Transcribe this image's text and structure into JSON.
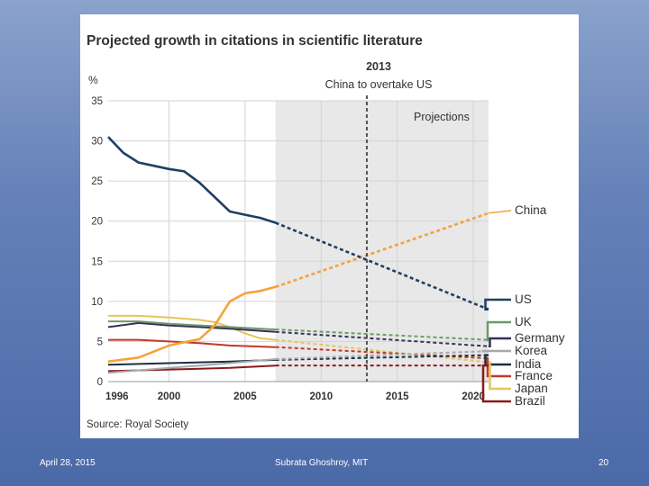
{
  "footer": {
    "date": "April 28, 2015",
    "author": "Subrata Ghoshroy, MIT",
    "page": "20"
  },
  "chart_data": {
    "type": "line",
    "title": "Projected growth in citations in scientific literature",
    "ylabel": "%",
    "xlabel": "",
    "xlim": [
      1996,
      2021
    ],
    "ylim": [
      0,
      35
    ],
    "x_ticks": [
      1996,
      2000,
      2005,
      2010,
      2015,
      2020
    ],
    "y_ticks": [
      0,
      5,
      10,
      15,
      20,
      25,
      30,
      35
    ],
    "x_tick_labels": [
      "1996",
      "2000",
      "2005",
      "2010",
      "2015",
      "2020"
    ],
    "y_tick_labels": [
      "0",
      "5",
      "10",
      "15",
      "20",
      "25",
      "30",
      "35"
    ],
    "projection_start": 2007,
    "projection_label": "Projections",
    "annotation": {
      "year": 2013,
      "title": "2013",
      "text": "China to overtake US"
    },
    "source": "Source: Royal Society",
    "colors": {
      "projection_band": "#e8e8e8",
      "grid": "#d4d4d4",
      "text": "#333333"
    },
    "series": [
      {
        "name": "China",
        "color": "#f5a23a",
        "x": [
          1996,
          1998,
          2000,
          2002,
          2003,
          2004,
          2005,
          2006,
          2007
        ],
        "values": [
          2.5,
          3.0,
          4.5,
          5.3,
          7.0,
          10.0,
          11.0,
          11.3,
          11.8
        ],
        "projection": [
          2021,
          21.0
        ]
      },
      {
        "name": "US",
        "color": "#1f3f63",
        "x": [
          1996,
          1997,
          1998,
          1999,
          2000,
          2001,
          2002,
          2003,
          2004,
          2005,
          2006,
          2007
        ],
        "values": [
          30.5,
          28.5,
          27.3,
          26.9,
          26.5,
          26.2,
          24.8,
          23.0,
          21.2,
          20.8,
          20.4,
          19.8
        ],
        "projection": [
          2021,
          9.0
        ]
      },
      {
        "name": "UK",
        "color": "#6a9a6a",
        "x": [
          1996,
          1998,
          2000,
          2002,
          2004,
          2007
        ],
        "values": [
          7.5,
          7.5,
          7.2,
          7.0,
          6.8,
          6.5
        ],
        "projection": [
          2021,
          5.2
        ]
      },
      {
        "name": "Germany",
        "color": "#3a2f55",
        "x": [
          1996,
          1998,
          2000,
          2002,
          2004,
          2007
        ],
        "values": [
          6.8,
          7.3,
          7.0,
          6.8,
          6.6,
          6.2
        ],
        "projection": [
          2021,
          4.4
        ]
      },
      {
        "name": "Korea",
        "color": "#a8a8a8",
        "x": [
          1996,
          1998,
          2000,
          2002,
          2004,
          2007
        ],
        "values": [
          1.1,
          1.4,
          1.7,
          2.0,
          2.3,
          2.8
        ],
        "projection": [
          2021,
          3.8
        ]
      },
      {
        "name": "India",
        "color": "#1c2e44",
        "x": [
          1996,
          1998,
          2000,
          2002,
          2004,
          2007
        ],
        "values": [
          2.1,
          2.2,
          2.3,
          2.4,
          2.5,
          2.7
        ],
        "projection": [
          2021,
          3.3
        ]
      },
      {
        "name": "France",
        "color": "#c0392b",
        "x": [
          1996,
          1998,
          2000,
          2002,
          2004,
          2007
        ],
        "values": [
          5.2,
          5.2,
          5.0,
          4.8,
          4.5,
          4.3
        ],
        "projection": [
          2021,
          2.9
        ]
      },
      {
        "name": "Japan",
        "color": "#e8c45a",
        "x": [
          1996,
          1998,
          2000,
          2002,
          2003,
          2004,
          2005,
          2006,
          2007
        ],
        "values": [
          8.2,
          8.2,
          8.0,
          7.7,
          7.4,
          6.8,
          6.0,
          5.4,
          5.2
        ],
        "projection": [
          2021,
          2.4
        ]
      },
      {
        "name": "Brazil",
        "color": "#8b1a1a",
        "x": [
          1996,
          1998,
          2000,
          2002,
          2004,
          2007
        ],
        "values": [
          1.3,
          1.4,
          1.5,
          1.6,
          1.7,
          2.0
        ],
        "projection": [
          2021,
          2.0
        ]
      }
    ]
  }
}
